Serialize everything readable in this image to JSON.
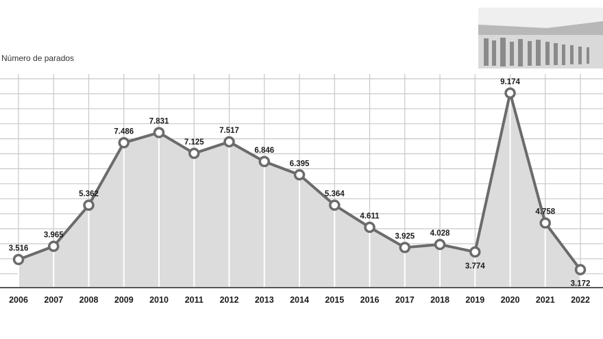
{
  "chart_data": {
    "type": "area",
    "title": "",
    "ylabel": "Número de parados",
    "xlabel": "",
    "categories": [
      "2006",
      "2007",
      "2008",
      "2009",
      "2010",
      "2011",
      "2012",
      "2013",
      "2014",
      "2015",
      "2016",
      "2017",
      "2018",
      "2019",
      "2020",
      "2021",
      "2022"
    ],
    "values": [
      3516,
      3965,
      5362,
      7486,
      7831,
      7125,
      7517,
      6846,
      6395,
      5364,
      4611,
      3925,
      4028,
      3774,
      9174,
      4758,
      3172
    ],
    "data_labels": [
      "3.516",
      "3.965",
      "5.362",
      "7.486",
      "7.831",
      "7.125",
      "7.517",
      "6.846",
      "6.395",
      "5.364",
      "4.611",
      "3.925",
      "4.028",
      "3.774",
      "9.174",
      "4.758",
      "3.172"
    ],
    "label_below": [
      false,
      false,
      false,
      false,
      false,
      false,
      false,
      false,
      false,
      false,
      false,
      false,
      false,
      true,
      false,
      false,
      true
    ],
    "ylim": [
      2500,
      9800
    ],
    "grid": true,
    "colors": {
      "line": "#6b6b6b",
      "fill": "#dcdcdc",
      "grid": "#c8c8c8",
      "marker_fill": "#ffffff",
      "text": "#1a1a1a"
    }
  },
  "photo": {
    "description_icon": "queue-photo"
  }
}
